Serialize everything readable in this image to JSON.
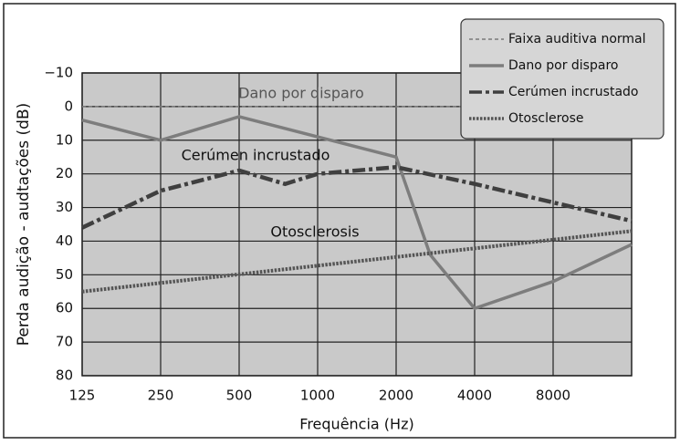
{
  "chart_data": {
    "type": "line",
    "ylabel": "Perda audição - audtações (dB)",
    "xlabel": "Frequência (Hz)",
    "xscale": "log",
    "xlim": [
      125,
      16000
    ],
    "xticks": [
      125,
      250,
      500,
      1000,
      2000,
      4000,
      8000
    ],
    "ylim": [
      -10,
      80
    ],
    "y_inverted": true,
    "yticks": [
      {
        "value": -10,
        "label": "−10"
      },
      0,
      10,
      20,
      30,
      40,
      50,
      60,
      70,
      80
    ],
    "grid": true,
    "legend": "upper right",
    "annotations": [
      "Dano por disparo",
      "Cerúmen incrustado",
      "Otosclerosis"
    ],
    "series": [
      {
        "name": "Faixa auditiva normal",
        "color": "#7a7a7a",
        "line_style": "dashed",
        "x": [
          125,
          16000
        ],
        "values": [
          0,
          0
        ]
      },
      {
        "name": "Dano por disparo",
        "color": "#7d7d7d",
        "line_style": "solid",
        "x": [
          125,
          250,
          500,
          1000,
          2000,
          2700,
          4000,
          8000,
          16000
        ],
        "values": [
          4,
          10,
          3,
          9,
          15,
          44,
          60,
          52,
          41
        ]
      },
      {
        "name": "Cerúmen incrustado",
        "color": "#3f3f3f",
        "line_style": "dashdot",
        "x": [
          125,
          250,
          500,
          750,
          1000,
          2000,
          4000,
          16000
        ],
        "values": [
          36,
          25,
          19,
          23,
          20,
          18,
          23,
          34
        ]
      },
      {
        "name": "Otosclerose",
        "color": "#555555",
        "line_style": "dotted",
        "x": [
          125,
          16000
        ],
        "values": [
          55,
          37
        ]
      }
    ]
  }
}
